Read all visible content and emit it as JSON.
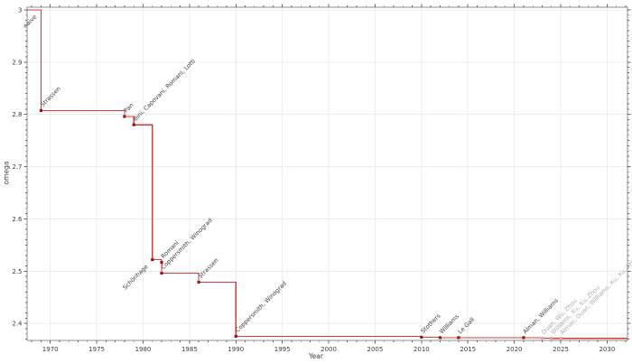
{
  "chart_data": {
    "type": "line",
    "step": "post",
    "title": "",
    "xlabel": "Year",
    "ylabel": "omega",
    "xlim": [
      1967.5,
      2032.2
    ],
    "ylim": [
      2.3675,
      3.005
    ],
    "grid": true,
    "x_major_ticks": [
      1970,
      1975,
      1980,
      1985,
      1990,
      1995,
      2000,
      2005,
      2010,
      2015,
      2020,
      2025,
      2030
    ],
    "x_tick_labels": [
      "1970",
      "1975",
      "1980",
      "1985",
      "1990",
      "1995",
      "2000",
      "2005",
      "2010",
      "2015",
      "2020",
      "2025",
      "2030"
    ],
    "x_minor_step": 1,
    "y_major_ticks": [
      2.4,
      2.5,
      2.6,
      2.7,
      2.8,
      2.9,
      3.0
    ],
    "y_tick_labels": [
      "2.4",
      "2.5",
      "2.6",
      "2.7",
      "2.8",
      "2.9",
      "3"
    ],
    "y_minor_step": 0.01,
    "start_value": 3,
    "points": [
      {
        "year": 1969,
        "omega": 3,
        "label": "naive",
        "marker": false,
        "label_side": "below",
        "era": "classic"
      },
      {
        "year": 1969,
        "omega": 2.8074,
        "label": "Strassen",
        "marker": true,
        "label_side": "above",
        "era": "classic"
      },
      {
        "year": 1978,
        "omega": 2.796,
        "label": "Pan",
        "marker": true,
        "label_side": "above",
        "era": "classic"
      },
      {
        "year": 1979,
        "omega": 2.78,
        "label": "Bini, Capovani, Romani, Lotti",
        "marker": true,
        "label_side": "above",
        "era": "classic"
      },
      {
        "year": 1981,
        "omega": 2.522,
        "label": "Schönhage",
        "marker": true,
        "label_side": "below",
        "era": "classic"
      },
      {
        "year": 1982,
        "omega": 2.517,
        "label": "Romani",
        "marker": true,
        "label_side": "above",
        "era": "classic"
      },
      {
        "year": 1982,
        "omega": 2.496,
        "label": "Coppersmith, Winograd",
        "marker": true,
        "label_side": "above",
        "era": "classic"
      },
      {
        "year": 1986,
        "omega": 2.479,
        "label": "Strassen",
        "marker": true,
        "label_side": "above",
        "era": "classic"
      },
      {
        "year": 1990,
        "omega": 2.3755,
        "label": "Coppersmith, Winograd",
        "marker": true,
        "label_side": "above",
        "era": "classic"
      },
      {
        "year": 2010,
        "omega": 2.3737,
        "label": "Stothers",
        "marker": true,
        "label_side": "above",
        "era": "classic"
      },
      {
        "year": 2012,
        "omega": 2.3729,
        "label": "Williams",
        "marker": true,
        "label_side": "above",
        "era": "classic"
      },
      {
        "year": 2014,
        "omega": 2.3728639,
        "label": "Le Gall",
        "marker": true,
        "label_side": "above",
        "era": "classic"
      },
      {
        "year": 2021,
        "omega": 2.3728596,
        "label": "Alman, Williams",
        "marker": true,
        "label_side": "above",
        "era": "classic"
      },
      {
        "year": 2023,
        "omega": 2.371866,
        "label": "Duan, Wu, Zhou",
        "marker": true,
        "label_side": "above",
        "era": "recent"
      },
      {
        "year": 2024,
        "omega": 2.371552,
        "label": "Williams, Xu, Xu, Zhou",
        "marker": true,
        "label_side": "above",
        "era": "recent"
      },
      {
        "year": 2025,
        "omega": 2.371339,
        "label": "Alman, Duan, Williams, Xu, Xu, Zhou",
        "marker": true,
        "label_side": "above",
        "era": "recent"
      }
    ],
    "colors": {
      "line": "#d63c3c",
      "marker": "#8f1b1b",
      "marker_recent": "#f09f9f",
      "label": "#3d3d3d",
      "label_recent": "#ababab",
      "grid": "#ececec",
      "frame": "#8c8c8c",
      "tick": "#666666",
      "tick_label": "#3d3d3d"
    }
  }
}
